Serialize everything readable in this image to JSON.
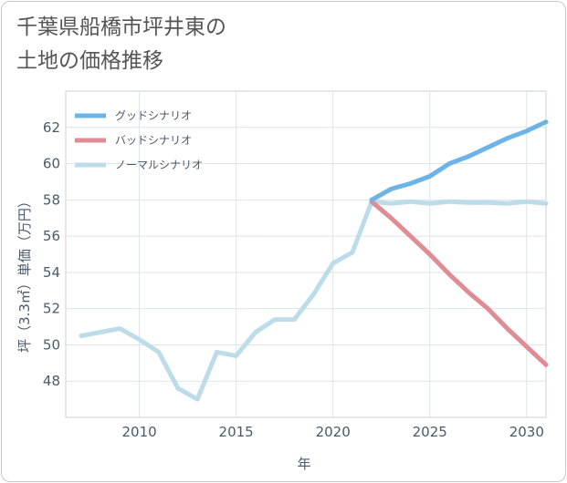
{
  "title_line1": "千葉県船橋市坪井東の",
  "title_line2": "土地の価格推移",
  "chart_data": {
    "type": "line",
    "xlabel": "年",
    "ylabel": "坪（3.3㎡）単価（万円）",
    "xlim": [
      2006.2,
      2031
    ],
    "ylim": [
      46,
      64
    ],
    "xticks": [
      2010,
      2015,
      2020,
      2025,
      2030
    ],
    "yticks": [
      48,
      50,
      52,
      54,
      56,
      58,
      60,
      62
    ],
    "grid": true,
    "legend_position": "top-left",
    "series": [
      {
        "name": "グッドシナリオ",
        "color": "#6cb4e8",
        "x": [
          2022,
          2023,
          2024,
          2025,
          2026,
          2027,
          2028,
          2029,
          2030,
          2031
        ],
        "y": [
          58.0,
          58.6,
          58.9,
          59.3,
          60.0,
          60.4,
          60.9,
          61.4,
          61.8,
          62.3
        ]
      },
      {
        "name": "バッドシナリオ",
        "color": "#e08c94",
        "x": [
          2022,
          2023,
          2024,
          2025,
          2026,
          2027,
          2028,
          2029,
          2030,
          2031
        ],
        "y": [
          57.9,
          57.0,
          56.0,
          55.0,
          53.9,
          52.9,
          52.0,
          50.9,
          49.9,
          48.9
        ]
      },
      {
        "name": "ノーマルシナリオ",
        "color": "#bcdcea",
        "x": [
          2007,
          2008,
          2009,
          2010,
          2011,
          2012,
          2013,
          2014,
          2015,
          2016,
          2017,
          2018,
          2019,
          2020,
          2021,
          2022,
          2023,
          2024,
          2025,
          2026,
          2027,
          2028,
          2029,
          2030,
          2031
        ],
        "y": [
          50.5,
          50.7,
          50.9,
          50.3,
          49.6,
          47.6,
          47.0,
          49.6,
          49.4,
          50.7,
          51.4,
          51.4,
          52.8,
          54.5,
          55.1,
          57.9,
          57.8,
          57.9,
          57.8,
          57.9,
          57.85,
          57.85,
          57.8,
          57.9,
          57.8
        ]
      }
    ]
  }
}
